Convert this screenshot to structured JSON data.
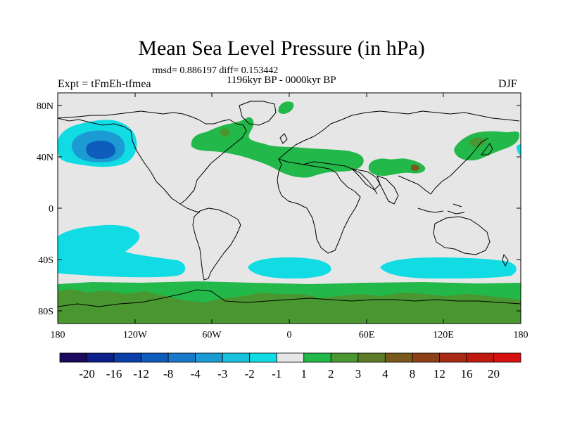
{
  "title": "Mean Sea Level Pressure (in hPa)",
  "stats": "rmsd= 0.886197 diff= 0.153442",
  "period": "1196kyr BP - 0000kyr BP",
  "experiment": "Expt = tFmEh-tfmea",
  "season": "DJF",
  "lat_labels": [
    "80N",
    "40N",
    "0",
    "40S",
    "80S"
  ],
  "lon_labels": [
    "180",
    "120W",
    "60W",
    "0",
    "60E",
    "120E",
    "180"
  ],
  "colorbar": {
    "labels": [
      "-20",
      "-16",
      "-12",
      "-8",
      "-4",
      "-3",
      "-2",
      "-1",
      "1",
      "2",
      "3",
      "4",
      "8",
      "12",
      "16",
      "20"
    ],
    "colors": [
      "#1a0a5e",
      "#0c1f8a",
      "#0a3fa8",
      "#0e5cbc",
      "#1a78c8",
      "#1c9ad4",
      "#18c2dc",
      "#11dce4",
      "#e6e6e6",
      "#22b84a",
      "#4a9630",
      "#5c7a2a",
      "#7a5a1c",
      "#8c4018",
      "#a82a14",
      "#c01a10",
      "#d81010"
    ]
  },
  "palette": {
    "neutral": "#e6e6e6",
    "light_blue": "#11dce4",
    "mid_blue": "#18c2dc",
    "blue": "#1c9ad4",
    "deep_blue": "#0e5cbc",
    "green": "#22b84a",
    "dark_green": "#4a9630",
    "olive": "#5c7a2a",
    "brown": "#7a5a1c",
    "coast": "#000000"
  }
}
